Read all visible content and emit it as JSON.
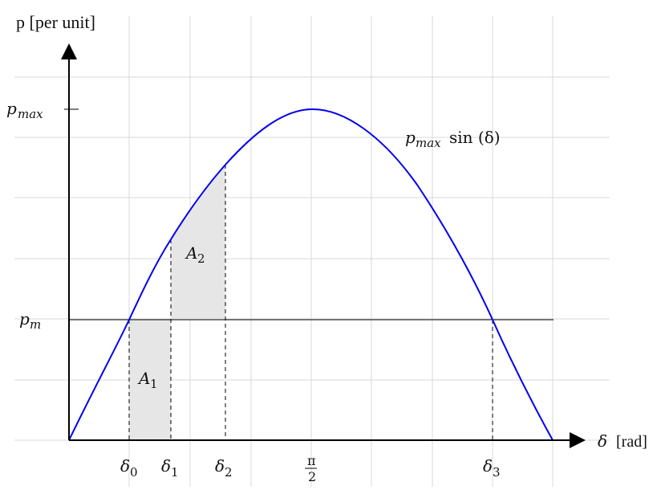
{
  "figure": {
    "y_axis_label": "p [per unit]",
    "x_axis_label_symbol": "δ",
    "x_axis_label_unit": "[rad]",
    "pmax_label": {
      "base": "p",
      "sub": "max"
    },
    "pm_label": {
      "base": "p",
      "sub": "m"
    },
    "curve_label": {
      "base": "p",
      "sub": "max",
      "rest": "sin (δ)"
    },
    "area_labels": [
      {
        "base": "A",
        "sub": "1"
      },
      {
        "base": "A",
        "sub": "2"
      }
    ],
    "x_tick_labels": [
      {
        "base": "δ",
        "sub": "0"
      },
      {
        "base": "δ",
        "sub": "1"
      },
      {
        "base": "δ",
        "sub": "2"
      },
      {
        "base": "π",
        "sub": "2",
        "fraction": true
      },
      {
        "base": "δ",
        "sub": "3"
      }
    ],
    "colors": {
      "curve": "#0000ee",
      "axis": "#000000",
      "grid": "#d9d9d9",
      "shade": "#e6e6e6",
      "dashed": "#000000"
    }
  }
}
